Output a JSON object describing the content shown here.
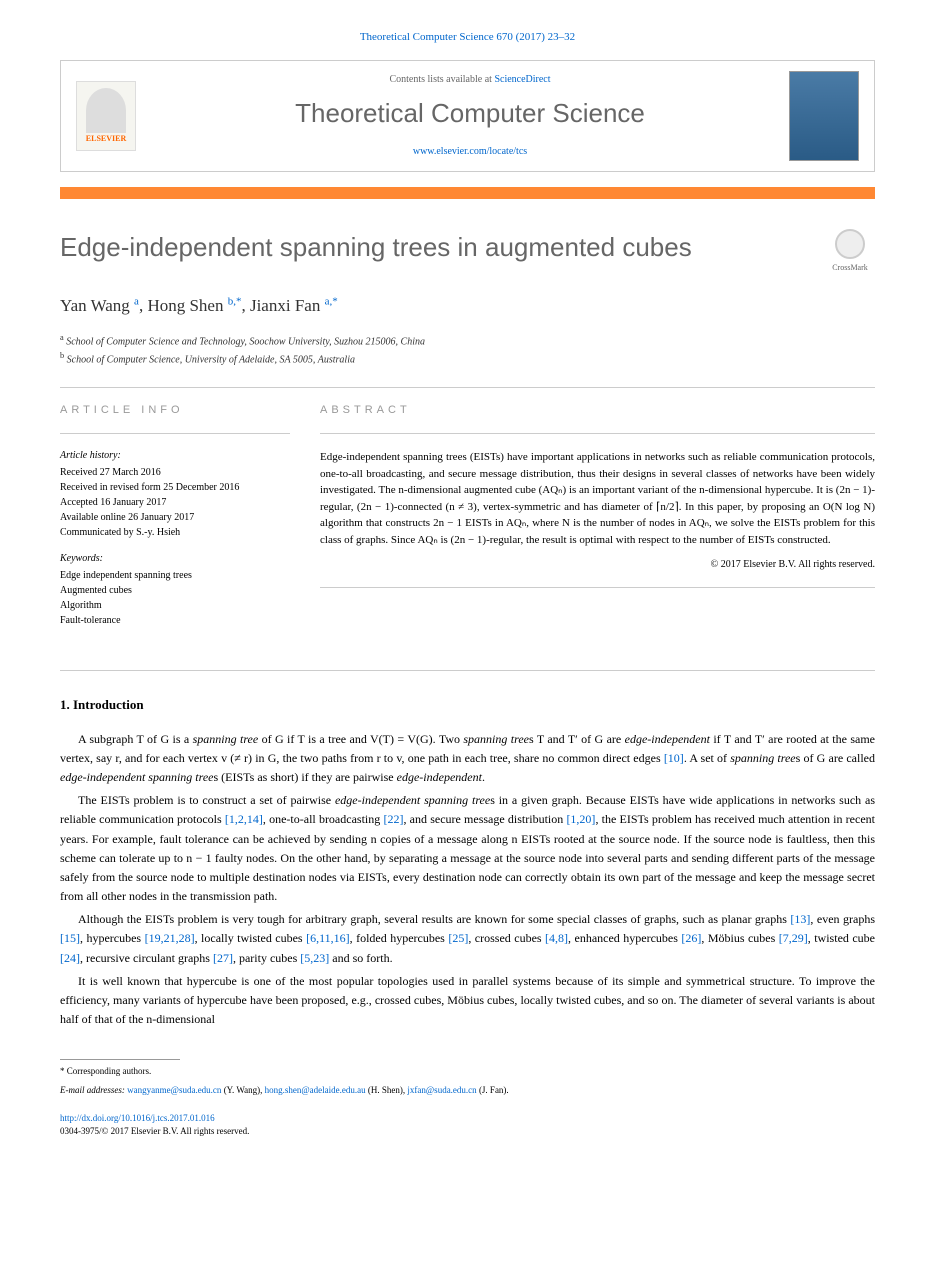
{
  "header": {
    "journal_ref": "Theoretical Computer Science 670 (2017) 23–32",
    "contents_prefix": "Contents lists available at ",
    "contents_link": "ScienceDirect",
    "journal_name": "Theoretical Computer Science",
    "journal_url": "www.elsevier.com/locate/tcs",
    "publisher": "ELSEVIER"
  },
  "title": "Edge-independent spanning trees in augmented cubes",
  "crossmark_label": "CrossMark",
  "authors_html": "Yan Wang <sup>a</sup>, Hong Shen <sup>b,*</sup>, Jianxi Fan <sup>a,*</sup>",
  "affiliations": [
    {
      "sup": "a",
      "text": "School of Computer Science and Technology, Soochow University, Suzhou 215006, China"
    },
    {
      "sup": "b",
      "text": "School of Computer Science, University of Adelaide, SA 5005, Australia"
    }
  ],
  "article_info": {
    "heading": "ARTICLE INFO",
    "history_label": "Article history:",
    "history": [
      "Received 27 March 2016",
      "Received in revised form 25 December 2016",
      "Accepted 16 January 2017",
      "Available online 26 January 2017",
      "Communicated by S.-y. Hsieh"
    ],
    "keywords_label": "Keywords:",
    "keywords": [
      "Edge independent spanning trees",
      "Augmented cubes",
      "Algorithm",
      "Fault-tolerance"
    ]
  },
  "abstract": {
    "heading": "ABSTRACT",
    "text": "Edge-independent spanning trees (EISTs) have important applications in networks such as reliable communication protocols, one-to-all broadcasting, and secure message distribution, thus their designs in several classes of networks have been widely investigated. The n-dimensional augmented cube (AQₙ) is an important variant of the n-dimensional hypercube. It is (2n − 1)-regular, (2n − 1)-connected (n ≠ 3), vertex-symmetric and has diameter of ⌈n/2⌉. In this paper, by proposing an O(N log N) algorithm that constructs 2n − 1 EISTs in AQₙ, where N is the number of nodes in AQₙ, we solve the EISTs problem for this class of graphs. Since AQₙ is (2n − 1)-regular, the result is optimal with respect to the number of EISTs constructed.",
    "copyright": "© 2017 Elsevier B.V. All rights reserved."
  },
  "section1": {
    "heading": "1. Introduction",
    "paragraphs": [
      "A subgraph T of G is a spanning tree of G if T is a tree and V(T) = V(G). Two spanning trees T and T′ of G are edge-independent if T and T′ are rooted at the same vertex, say r, and for each vertex v (≠ r) in G, the two paths from r to v, one path in each tree, share no common direct edges [10]. A set of spanning trees of G are called edge-independent spanning trees (EISTs as short) if they are pairwise edge-independent.",
      "The EISTs problem is to construct a set of pairwise edge-independent spanning trees in a given graph. Because EISTs have wide applications in networks such as reliable communication protocols [1,2,14], one-to-all broadcasting [22], and secure message distribution [1,20], the EISTs problem has received much attention in recent years. For example, fault tolerance can be achieved by sending n copies of a message along n EISTs rooted at the source node. If the source node is faultless, then this scheme can tolerate up to n − 1 faulty nodes. On the other hand, by separating a message at the source node into several parts and sending different parts of the message safely from the source node to multiple destination nodes via EISTs, every destination node can correctly obtain its own part of the message and keep the message secret from all other nodes in the transmission path.",
      "Although the EISTs problem is very tough for arbitrary graph, several results are known for some special classes of graphs, such as planar graphs [13], even graphs [15], hypercubes [19,21,28], locally twisted cubes [6,11,16], folded hypercubes [25], crossed cubes [4,8], enhanced hypercubes [26], Möbius cubes [7,29], twisted cube [24], recursive circulant graphs [27], parity cubes [5,23] and so forth.",
      "It is well known that hypercube is one of the most popular topologies used in parallel systems because of its simple and symmetrical structure. To improve the efficiency, many variants of hypercube have been proposed, e.g., crossed cubes, Möbius cubes, locally twisted cubes, and so on. The diameter of several variants is about half of that of the n-dimensional"
    ]
  },
  "footer": {
    "corresponding": "* Corresponding authors.",
    "email_label": "E-mail addresses:",
    "emails": [
      {
        "addr": "wangyanme@suda.edu.cn",
        "name": "(Y. Wang)"
      },
      {
        "addr": "hong.shen@adelaide.edu.au",
        "name": "(H. Shen)"
      },
      {
        "addr": "jxfan@suda.edu.cn",
        "name": "(J. Fan)"
      }
    ],
    "doi": "http://dx.doi.org/10.1016/j.tcs.2017.01.016",
    "issn_line": "0304-3975/© 2017 Elsevier B.V. All rights reserved."
  },
  "colors": {
    "link": "#0066cc",
    "orange": "#ff8833",
    "gray_text": "#666666",
    "border": "#cccccc"
  }
}
